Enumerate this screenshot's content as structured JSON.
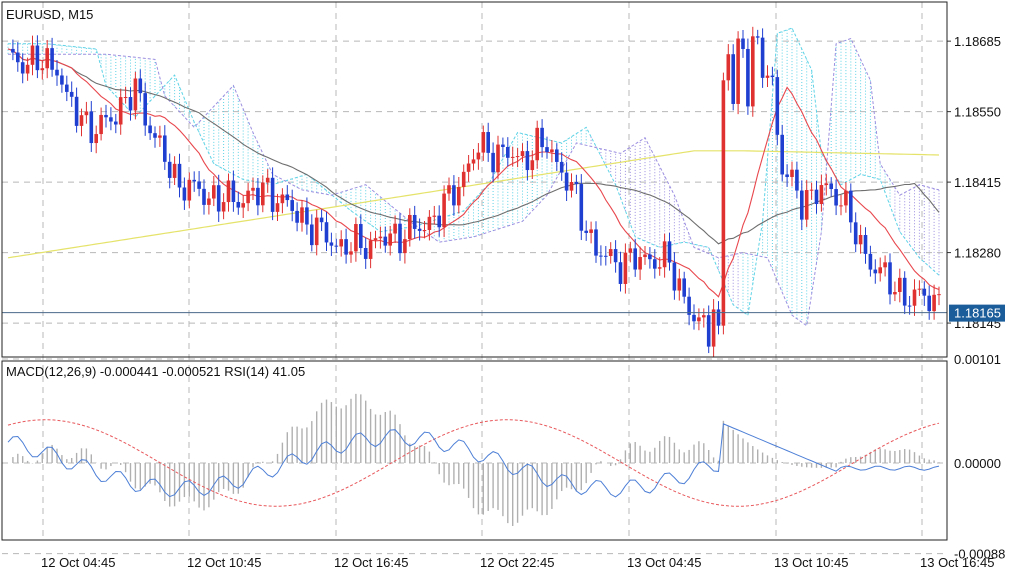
{
  "colors": {
    "bull": "#e03131",
    "bear": "#1f3fd1",
    "grid": "#b8b8b8",
    "ma_fast": "#e8474d",
    "ma_slow": "#6e6e6e",
    "ma_long": "#e5e36a",
    "cloud": "#5fd3e6",
    "cloud_alt": "#9b8fe0",
    "macd_line": "#4d7fd6",
    "macd_signal": "#e8585c",
    "histogram": "#b0b0b0",
    "price_line": "#4a6a8a",
    "price_label_bg": "#1b5d9a"
  },
  "chart_data": [
    {
      "type": "candlestick",
      "title": "EURUSD, M15",
      "y_ticks": [
        "1.18685",
        "1.18550",
        "1.18415",
        "1.18280",
        "1.18145"
      ],
      "y_tick_values": [
        1.18685,
        1.1855,
        1.18415,
        1.1828,
        1.18145
      ],
      "current_price": 1.18165,
      "current_price_label": "1.18165",
      "x_ticks": [
        "12 Oct 04:45",
        "12 Oct 10:45",
        "12 Oct 16:45",
        "12 Oct 22:45",
        "13 Oct 04:45",
        "13 Oct 10:45",
        "13 Oct 16:45"
      ],
      "y_range": [
        1.1808,
        1.1876
      ],
      "grid": true
    },
    {
      "type": "line",
      "title": "MACD(12,26,9) -0.000441 -0.000521 RSI(14) 41.05",
      "y_ticks": [
        "0.00101",
        "0.00000",
        "-0.00088"
      ],
      "y_tick_values": [
        0.00101,
        0.0,
        -0.00088
      ],
      "grid": true
    }
  ]
}
